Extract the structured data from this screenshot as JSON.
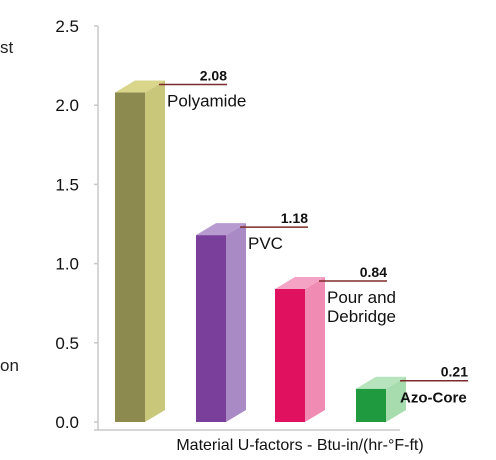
{
  "chart_data": {
    "type": "bar",
    "style": "3d-column",
    "categories": [
      "Polyamide",
      "PVC",
      "Pour and Debridge",
      "Azo-Core"
    ],
    "values": [
      2.08,
      1.18,
      0.84,
      0.21
    ],
    "value_labels": [
      "2.08",
      "1.18",
      "0.84",
      "0.21"
    ],
    "category_label_lines": [
      [
        "Polyamide"
      ],
      [
        "PVC"
      ],
      [
        "Pour and",
        "Debridge"
      ],
      [
        "Azo-Core"
      ]
    ],
    "xlabel": "Material U-factors - Btu-in/(hr-°F-ft)",
    "ylabel": "",
    "ylim": [
      0,
      2.5
    ],
    "yticks": [
      "0.0",
      "0.5",
      "1.0",
      "1.5",
      "2.0",
      "2.5"
    ],
    "grid": false,
    "legend": "none",
    "colors": [
      {
        "front": "#8c8a4f",
        "side": "#c9c77a",
        "top": "#d9d68c"
      },
      {
        "front": "#7a3f9a",
        "side": "#a98ac4",
        "top": "#b79bd0"
      },
      {
        "front": "#e0115f",
        "side": "#f08cb3",
        "top": "#f5a3c4"
      },
      {
        "front": "#1f9a3e",
        "side": "#a6dcae",
        "top": "#b7e3bd"
      }
    ]
  },
  "left_cut_text": [
    "st",
    "on"
  ]
}
